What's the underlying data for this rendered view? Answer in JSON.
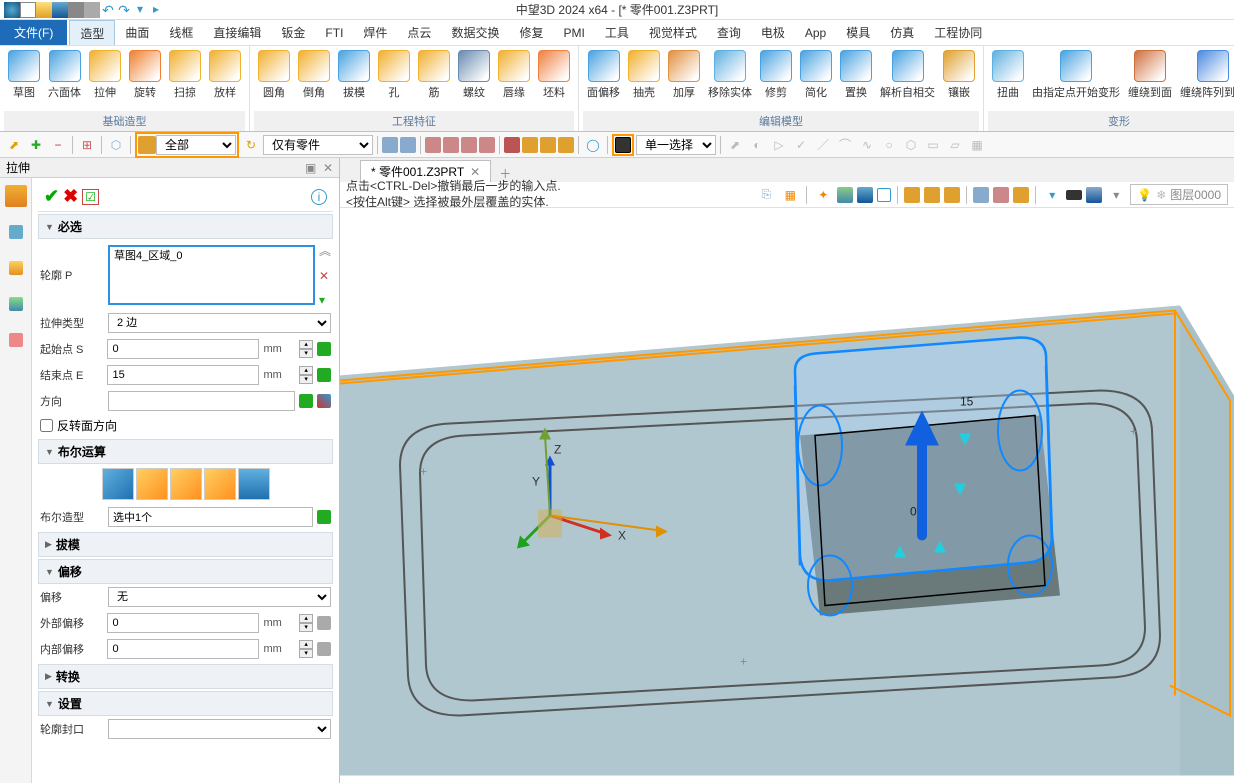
{
  "app": {
    "title": "中望3D 2024 x64 - [* 零件001.Z3PRT]"
  },
  "qat": {
    "items": [
      "new",
      "open",
      "save",
      "print",
      "cut",
      "undo",
      "redo",
      "more",
      "play"
    ]
  },
  "menu": {
    "file": "文件(F)",
    "items": [
      "造型",
      "曲面",
      "线框",
      "直接编辑",
      "钣金",
      "FTI",
      "焊件",
      "点云",
      "数据交换",
      "修复",
      "PMI",
      "工具",
      "视觉样式",
      "查询",
      "电极",
      "App",
      "模具",
      "仿真",
      "工程协同"
    ],
    "active_index": 0
  },
  "ribbon": {
    "groups": [
      {
        "label": "基础造型",
        "buttons": [
          {
            "label": "草图",
            "color": "#4aa3e0"
          },
          {
            "label": "六面体",
            "color": "#4aa3e0"
          },
          {
            "label": "拉伸",
            "color": "#f0b030"
          },
          {
            "label": "旋转",
            "color": "#f08030"
          },
          {
            "label": "扫掠",
            "color": "#f0b030"
          },
          {
            "label": "放样",
            "color": "#f0b030"
          }
        ]
      },
      {
        "label": "工程特征",
        "buttons": [
          {
            "label": "圆角",
            "color": "#f0b030"
          },
          {
            "label": "倒角",
            "color": "#f0b030"
          },
          {
            "label": "拔模",
            "color": "#4aa3e0"
          },
          {
            "label": "孔",
            "color": "#f0b030"
          },
          {
            "label": "筋",
            "color": "#f0b030"
          },
          {
            "label": "螺纹",
            "color": "#6a8ab0"
          },
          {
            "label": "唇缘",
            "color": "#f0b030"
          },
          {
            "label": "坯料",
            "color": "#f08040"
          }
        ]
      },
      {
        "label": "编辑模型",
        "buttons": [
          {
            "label": "面偏移",
            "color": "#4aa3e0"
          },
          {
            "label": "抽壳",
            "color": "#f0b030"
          },
          {
            "label": "加厚",
            "color": "#e09040"
          },
          {
            "label": "移除实体",
            "color": "#60b0e0"
          },
          {
            "label": "修剪",
            "color": "#4aa3e0"
          },
          {
            "label": "简化",
            "color": "#4aa3e0"
          },
          {
            "label": "置换",
            "color": "#4aa3e0"
          },
          {
            "label": "解析自相交",
            "color": "#4aa3e0"
          },
          {
            "label": "镶嵌",
            "color": "#e0a030"
          }
        ]
      },
      {
        "label": "变形",
        "buttons": [
          {
            "label": "扭曲",
            "color": "#60b0e0"
          },
          {
            "label": "由指定点开始变形",
            "color": "#4aa3e0"
          },
          {
            "label": "缠绕到面",
            "color": "#d07040"
          },
          {
            "label": "缠绕阵列到面",
            "color": "#4a8ae0"
          }
        ]
      }
    ]
  },
  "toolbar2": {
    "combo1": "全部",
    "combo2": "仅有零件",
    "combo3": "单一选择"
  },
  "panel": {
    "title": "拉伸",
    "section_required": "必选",
    "profile_label": "轮廓 P",
    "profile_value": "草图4_区域_0",
    "type_label": "拉伸类型",
    "type_value": "2 边",
    "start_label": "起始点 S",
    "start_value": "0",
    "end_label": "结束点 E",
    "end_value": "15",
    "dir_label": "方向",
    "flip_label": "反转面方向",
    "section_bool": "布尔运算",
    "bool_label": "布尔造型",
    "bool_value": "选中1个",
    "section_draft": "拔模",
    "section_offset": "偏移",
    "offset_label": "偏移",
    "offset_value": "无",
    "outer_label": "外部偏移",
    "outer_value": "0",
    "inner_label": "内部偏移",
    "inner_value": "0",
    "section_xform": "转换",
    "section_settings": "设置",
    "cap_label": "轮廓封口",
    "unit_mm": "mm"
  },
  "tabs": {
    "doc": "* 零件001.Z3PRT"
  },
  "viewport": {
    "hint1": "点击<CTRL-Del>撤销最后一步的输入点.",
    "hint2": "<按住Alt键> 选择被最外层覆盖的实体.",
    "layer": "图层0000",
    "dim15": "15",
    "dim0": "0",
    "axis_x": "X",
    "axis_y": "Y",
    "axis_z": "Z"
  },
  "colors": {
    "highlight": "#ff9800",
    "extrude_edge": "#1088ff",
    "extrude_fill": "#b0d8ff",
    "base_face": "#a8c0c8",
    "base_top": "#6a7a7a",
    "outline": "#555"
  }
}
